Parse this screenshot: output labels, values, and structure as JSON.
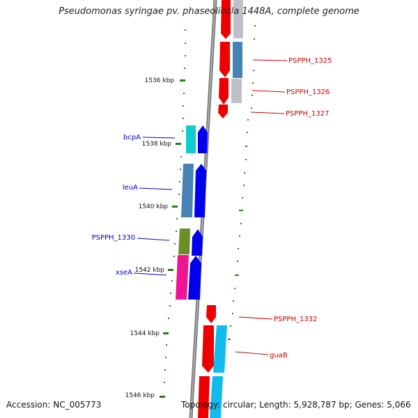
{
  "title": "Pseudomonas syringae pv. phaseolicola 1448A, complete genome",
  "accession": "Accession: NC_005773",
  "topology": "Topology: circular; Length: 5,928,787 bp; Genes: 5,066",
  "colors": {
    "backbone": "#8c8c8c",
    "tick": "#2a7a1a",
    "forward": "#ee0000",
    "reverse": "#0000ee",
    "left_label": "#0000cc",
    "right_label": "#cc0000"
  },
  "scale_labels": [
    "1536 kbp",
    "1538 kbp",
    "1540 kbp",
    "1542 kbp",
    "1544 kbp",
    "1546 kbp"
  ],
  "left_genes": [
    {
      "label": "bcpA",
      "color": "#11cccc"
    },
    {
      "label": "leuA",
      "color": "#4682b4"
    },
    {
      "label": "PSPPH_1330",
      "color": "#6b8e23"
    },
    {
      "label": "xseA",
      "color": "#ee1493"
    }
  ],
  "right_genes": [
    {
      "label": "PSPPH_1325",
      "color": "#4682b4"
    },
    {
      "label": "PSPPH_1326",
      "color": "#c0c0c8"
    },
    {
      "label": "PSPPH_1327",
      "color": "#ee0000"
    },
    {
      "label": "PSPPH_1332",
      "color": "#ee0000"
    },
    {
      "label": "guaB",
      "color": "#11bbee"
    }
  ]
}
